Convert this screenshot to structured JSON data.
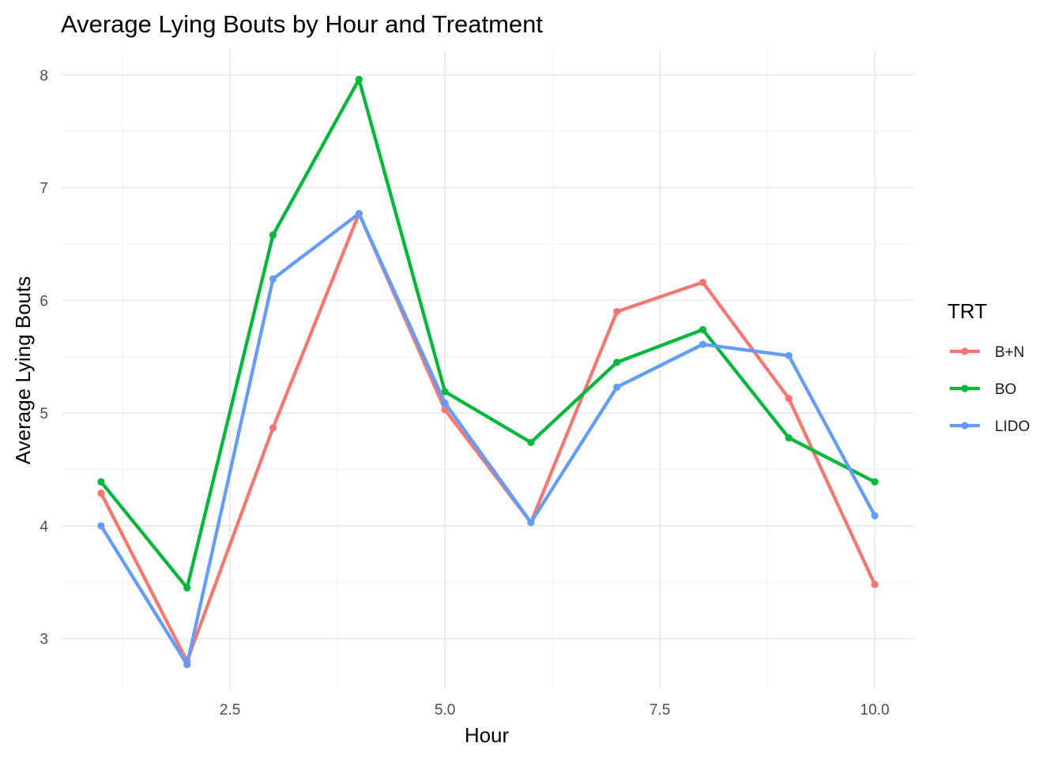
{
  "chart_data": {
    "type": "line",
    "title": "Average Lying Bouts by Hour and Treatment",
    "xlabel": "Hour",
    "ylabel": "Average Lying Bouts",
    "x": [
      1,
      2,
      3,
      4,
      5,
      6,
      7,
      8,
      9,
      10
    ],
    "xlim": [
      0.55,
      10.45
    ],
    "ylim": [
      2.55,
      8.23
    ],
    "x_ticks": [
      2.5,
      5.0,
      7.5,
      10.0
    ],
    "x_tick_labels": [
      "2.5",
      "5.0",
      "7.5",
      "10.0"
    ],
    "y_ticks": [
      3,
      4,
      5,
      6,
      7,
      8
    ],
    "y_tick_labels": [
      "3",
      "4",
      "5",
      "6",
      "7",
      "8"
    ],
    "grid": true,
    "legend_title": "TRT",
    "legend_position": "right",
    "series": [
      {
        "name": "B+N",
        "color": "#F8766D",
        "values": [
          4.29,
          2.8,
          4.87,
          6.77,
          5.03,
          4.03,
          5.9,
          6.16,
          5.13,
          3.48
        ]
      },
      {
        "name": "BO",
        "color": "#00BA38",
        "values": [
          4.39,
          3.45,
          6.58,
          7.96,
          5.19,
          4.74,
          5.45,
          5.74,
          4.78,
          4.39
        ]
      },
      {
        "name": "LIDO",
        "color": "#619CFF",
        "values": [
          4.0,
          2.77,
          6.19,
          6.77,
          5.09,
          4.03,
          5.23,
          5.61,
          5.51,
          4.09
        ]
      }
    ]
  }
}
